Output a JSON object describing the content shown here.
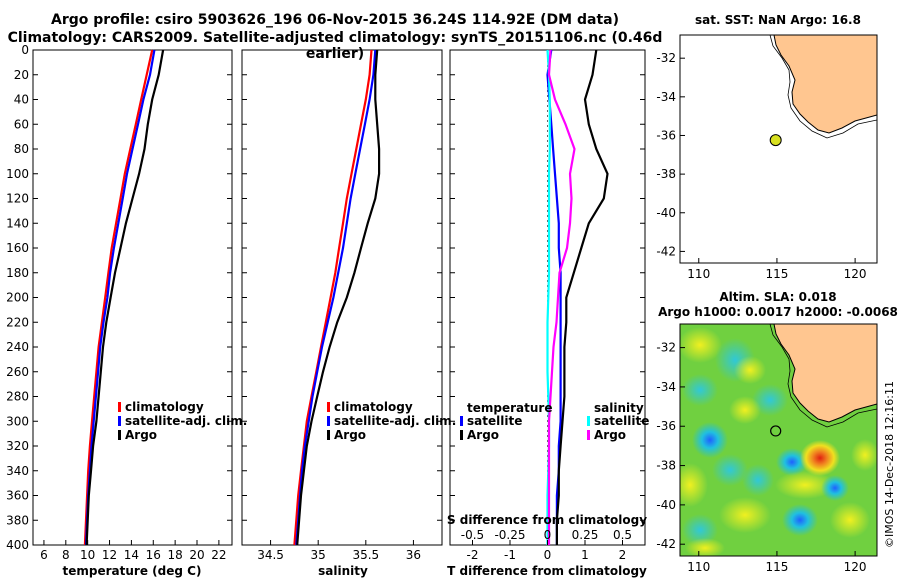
{
  "header": {
    "title_line1": "Argo profile: csiro 5903626_196 06-Nov-2015 36.24S 114.92E (DM data)",
    "title_line2": "Climatology: CARS2009. Satellite-adjusted climatology: synTS_20151106.nc (0.46d earlier)"
  },
  "colors": {
    "climatology": "#ff0000",
    "satellite": "#0000ff",
    "argo": "#000000",
    "sat_T": "#00ffff",
    "sal_diff": "#ff00ff",
    "land": "#ffc690"
  },
  "depth_axis": {
    "ticks": [
      0,
      20,
      40,
      60,
      80,
      100,
      120,
      140,
      160,
      180,
      200,
      220,
      240,
      260,
      280,
      300,
      320,
      340,
      360,
      380,
      400
    ]
  },
  "chart_data": [
    {
      "type": "line",
      "panel": "temperature",
      "xlabel": "temperature (deg C)",
      "ylabel": "depth",
      "xlim": [
        5,
        23.2
      ],
      "ylim": [
        400,
        0
      ],
      "xticks": [
        6,
        8,
        10,
        12,
        14,
        16,
        18,
        20,
        22
      ],
      "depth": [
        0,
        20,
        40,
        60,
        80,
        100,
        120,
        140,
        160,
        180,
        200,
        220,
        240,
        260,
        280,
        300,
        320,
        340,
        360,
        380,
        400
      ],
      "series": [
        {
          "name": "climatology",
          "color": "#ff0000",
          "values": [
            15.9,
            15.4,
            14.9,
            14.4,
            13.9,
            13.4,
            13.0,
            12.6,
            12.2,
            11.9,
            11.6,
            11.3,
            11.0,
            10.8,
            10.6,
            10.4,
            10.2,
            10.05,
            9.95,
            9.85,
            9.75
          ]
        },
        {
          "name": "satellite-adj. clim.",
          "color": "#0000ff",
          "values": [
            16.1,
            15.7,
            15.1,
            14.6,
            14.1,
            13.6,
            13.2,
            12.8,
            12.4,
            12.05,
            11.8,
            11.45,
            11.15,
            10.95,
            10.75,
            10.55,
            10.35,
            10.2,
            10.05,
            9.95,
            9.85
          ]
        },
        {
          "name": "Argo",
          "color": "#000000",
          "values": [
            16.9,
            16.5,
            15.9,
            15.5,
            15.2,
            14.7,
            14.1,
            13.5,
            13.0,
            12.5,
            12.1,
            11.7,
            11.4,
            11.2,
            11.0,
            10.8,
            10.5,
            10.3,
            10.1,
            10.0,
            9.9
          ]
        }
      ],
      "legend": [
        "climatology",
        "satellite-adj. clim.",
        "Argo"
      ]
    },
    {
      "type": "line",
      "panel": "salinity",
      "xlabel": "salinity",
      "ylabel": "depth",
      "xlim": [
        34.2,
        36.3
      ],
      "ylim": [
        400,
        0
      ],
      "xticks": [
        34.5,
        35,
        35.5,
        36
      ],
      "depth": [
        0,
        20,
        40,
        60,
        80,
        100,
        120,
        140,
        160,
        180,
        200,
        220,
        240,
        260,
        280,
        300,
        320,
        340,
        360,
        380,
        400
      ],
      "series": [
        {
          "name": "climatology",
          "color": "#ff0000",
          "values": [
            35.56,
            35.54,
            35.5,
            35.45,
            35.4,
            35.35,
            35.3,
            35.26,
            35.22,
            35.18,
            35.13,
            35.08,
            35.03,
            34.98,
            34.93,
            34.88,
            34.85,
            34.82,
            34.79,
            34.77,
            34.75
          ]
        },
        {
          "name": "satellite-adj. clim.",
          "color": "#0000ff",
          "values": [
            35.6,
            35.58,
            35.54,
            35.49,
            35.44,
            35.39,
            35.34,
            35.3,
            35.26,
            35.21,
            35.16,
            35.1,
            35.04,
            34.99,
            34.94,
            34.9,
            34.86,
            34.83,
            34.81,
            34.79,
            34.77
          ]
        },
        {
          "name": "Argo",
          "color": "#000000",
          "values": [
            35.62,
            35.6,
            35.6,
            35.62,
            35.64,
            35.64,
            35.6,
            35.52,
            35.45,
            35.38,
            35.3,
            35.2,
            35.12,
            35.05,
            34.99,
            34.93,
            34.88,
            34.85,
            34.82,
            34.8,
            34.78
          ]
        }
      ],
      "legend": [
        "climatology",
        "satellite-adj. clim.",
        "Argo"
      ]
    },
    {
      "type": "line",
      "panel": "differences",
      "xlabel": "T difference from climatology",
      "xlabel_top": "S difference from climatology",
      "xlim": [
        -2.6,
        2.6
      ],
      "xticks": [
        -2,
        -1,
        0,
        1,
        2
      ],
      "xticks_top": [
        -0.5,
        -0.25,
        0,
        0.25,
        0.5
      ],
      "ylim": [
        400,
        0
      ],
      "depth": [
        0,
        20,
        40,
        60,
        80,
        100,
        120,
        140,
        160,
        180,
        200,
        220,
        240,
        260,
        280,
        300,
        320,
        340,
        360,
        380,
        400
      ],
      "legend_temperature_title": "temperature",
      "legend_salinity_title": "salinity",
      "legend_temperature": [
        "satellite",
        "Argo"
      ],
      "legend_salinity": [
        "satellite",
        "Argo"
      ],
      "series": [
        {
          "name": "temperature satellite",
          "color": "#0000ff",
          "values": [
            0.1,
            0.0,
            0.05,
            0.1,
            0.15,
            0.2,
            0.25,
            0.3,
            0.3,
            0.35,
            0.35,
            0.35,
            0.35,
            0.35,
            0.35,
            0.35,
            0.3,
            0.3,
            0.25,
            0.25,
            0.25
          ]
        },
        {
          "name": "temperature Argo",
          "color": "#000000",
          "values": [
            1.3,
            1.2,
            1.0,
            1.1,
            1.3,
            1.6,
            1.5,
            1.1,
            0.9,
            0.7,
            0.5,
            0.5,
            0.45,
            0.45,
            0.45,
            0.4,
            0.35,
            0.3,
            0.3,
            0.25,
            0.25
          ]
        },
        {
          "name": "salinity satellite",
          "color": "#00ffff",
          "values": [
            0.0,
            0.01,
            0.015,
            0.015,
            0.015,
            0.01,
            0.01,
            0.01,
            0.01,
            0.01,
            0.005,
            0.0,
            0.0,
            0.0,
            0.005,
            0.01,
            0.01,
            0.005,
            0.0,
            0.0,
            0.0
          ]
        },
        {
          "name": "salinity Argo",
          "color": "#ff00ff",
          "values": [
            0.02,
            0.01,
            0.05,
            0.12,
            0.18,
            0.15,
            0.16,
            0.15,
            0.13,
            0.08,
            0.07,
            0.06,
            0.04,
            0.03,
            0.02,
            0.01,
            0.01,
            0.01,
            0.01,
            0.01,
            0.01
          ]
        }
      ]
    }
  ],
  "map_sst": {
    "title": "sat. SST: NaN Argo: 16.8",
    "xticks": [
      110,
      115,
      120
    ],
    "yticks": [
      -32,
      -34,
      -36,
      -38,
      -40,
      -42
    ],
    "xlim": [
      108.8,
      121.4
    ],
    "ylim": [
      -42.6,
      -30.8
    ],
    "argo_lon": 114.92,
    "argo_lat": -36.24
  },
  "map_sla": {
    "title_line1": "Altim. SLA: 0.018",
    "title_line2": "Argo h1000: 0.0017 h2000: -0.0068",
    "xticks": [
      110,
      115,
      120
    ],
    "yticks": [
      -32,
      -34,
      -36,
      -38,
      -40,
      -42
    ],
    "xlim": [
      108.8,
      121.4
    ],
    "ylim": [
      -42.6,
      -30.8
    ],
    "argo_lon": 114.92,
    "argo_lat": -36.24
  },
  "credit": "©IMOS 14-Dec-2018 12:16:11"
}
